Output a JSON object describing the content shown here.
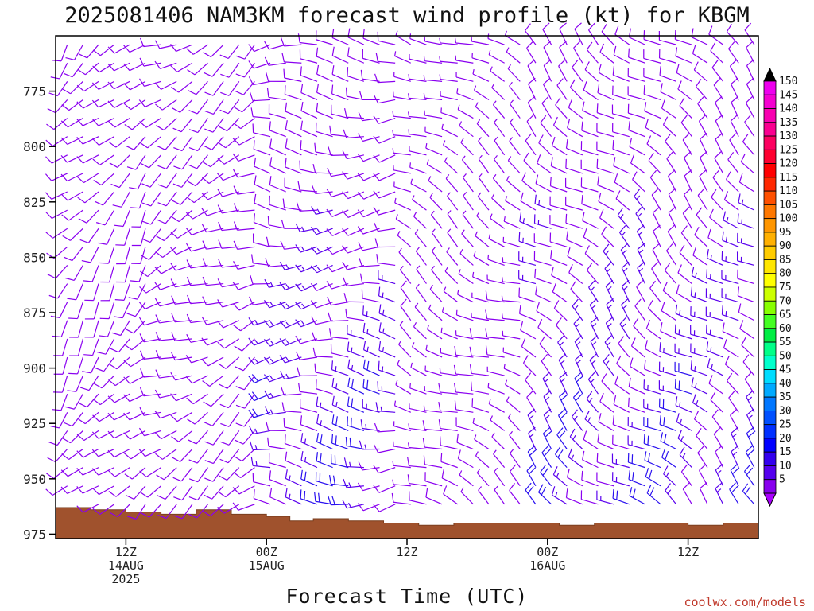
{
  "header": {
    "title": "2025081406 NAM3KM forecast wind profile (kt) for KBGM"
  },
  "footer": {
    "credit": "coolwx.com/models"
  },
  "chart_data": {
    "type": "wind-barb time-height profile",
    "title": "2025081406 NAM3KM forecast wind profile (kt) for KBGM",
    "xlabel": "Forecast Time (UTC)",
    "ylabel": "",
    "x_range_hours": [
      0,
      60
    ],
    "y_range_hPa": [
      750,
      977
    ],
    "y_axis_inverted": true,
    "y_ticks": [
      {
        "value": 775,
        "label": "775"
      },
      {
        "value": 800,
        "label": "800"
      },
      {
        "value": 825,
        "label": "825"
      },
      {
        "value": 850,
        "label": "850"
      },
      {
        "value": 875,
        "label": "875"
      },
      {
        "value": 900,
        "label": "900"
      },
      {
        "value": 925,
        "label": "925"
      },
      {
        "value": 950,
        "label": "950"
      },
      {
        "value": 975,
        "label": "975"
      }
    ],
    "x_ticks": [
      {
        "hour": 6,
        "lines": [
          "12Z",
          "14AUG",
          "2025"
        ]
      },
      {
        "hour": 18,
        "lines": [
          "00Z",
          "15AUG"
        ]
      },
      {
        "hour": 30,
        "lines": [
          "12Z"
        ]
      },
      {
        "hour": 42,
        "lines": [
          "00Z",
          "16AUG"
        ]
      },
      {
        "hour": 54,
        "lines": [
          "12Z"
        ]
      }
    ],
    "grid": false,
    "legend": "right",
    "colorbar": {
      "labels": [
        "150",
        "145",
        "140",
        "135",
        "130",
        "125",
        "120",
        "115",
        "110",
        "105",
        "100",
        "95",
        "90",
        "85",
        "80",
        "75",
        "70",
        "65",
        "60",
        "55",
        "50",
        "45",
        "40",
        "35",
        "30",
        "25",
        "20",
        "15",
        "10",
        "5"
      ],
      "colors": [
        "#ee00ee",
        "#f400d0",
        "#f800b0",
        "#fa0090",
        "#fc0060",
        "#fe0030",
        "#ff0000",
        "#ff2800",
        "#ff5000",
        "#ff7800",
        "#ff9600",
        "#ffb000",
        "#ffcc00",
        "#ffe600",
        "#ffff00",
        "#ccff00",
        "#88ff00",
        "#44ff22",
        "#00ee44",
        "#00ff88",
        "#00ffcc",
        "#00ddff",
        "#00aaff",
        "#0077ff",
        "#0050ff",
        "#0030ff",
        "#0000ff",
        "#3300ee",
        "#5500ee",
        "#8800ee"
      ],
      "top_arrow_color": "#000000",
      "bottom_arrow_color": "#aa00ff"
    },
    "terrain": {
      "color": "#a0522d",
      "surface_pressure": [
        {
          "hour": 0,
          "hPa": 963
        },
        {
          "hour": 3,
          "hPa": 964
        },
        {
          "hour": 6,
          "hPa": 965
        },
        {
          "hour": 9,
          "hPa": 966
        },
        {
          "hour": 12,
          "hPa": 964
        },
        {
          "hour": 15,
          "hPa": 966
        },
        {
          "hour": 18,
          "hPa": 967
        },
        {
          "hour": 20,
          "hPa": 969
        },
        {
          "hour": 22,
          "hPa": 968
        },
        {
          "hour": 25,
          "hPa": 969
        },
        {
          "hour": 28,
          "hPa": 970
        },
        {
          "hour": 31,
          "hPa": 971
        },
        {
          "hour": 34,
          "hPa": 970
        },
        {
          "hour": 40,
          "hPa": 970
        },
        {
          "hour": 43,
          "hPa": 971
        },
        {
          "hour": 46,
          "hPa": 970
        },
        {
          "hour": 51,
          "hPa": 970
        },
        {
          "hour": 54,
          "hPa": 971
        },
        {
          "hour": 57,
          "hPa": 970
        },
        {
          "hour": 60,
          "hPa": 970
        }
      ]
    },
    "wind_regimes": [
      {
        "hours": [
          0,
          8
        ],
        "speed_kt": [
          10,
          15
        ],
        "direction_deg": 220
      },
      {
        "hours": [
          8,
          18
        ],
        "speed_kt": [
          10,
          15
        ],
        "direction_deg": 240
      },
      {
        "hours": [
          18,
          30
        ],
        "speed_kt": [
          10,
          25
        ],
        "direction_deg": 270
      },
      {
        "hours": [
          30,
          40
        ],
        "speed_kt": [
          5,
          15
        ],
        "direction_deg": 300
      },
      {
        "hours": [
          40,
          60
        ],
        "speed_kt": [
          10,
          25
        ],
        "direction_deg": 310
      }
    ]
  }
}
